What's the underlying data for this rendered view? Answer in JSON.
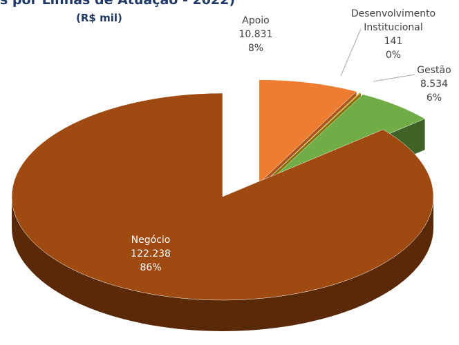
{
  "chart_data": {
    "type": "pie3d",
    "title": "s por Linhas de Atuação - 2022)",
    "subtitle": "(R$ mil)",
    "categories": [
      "Apoio",
      "Desenvolvimento Institucional",
      "Gestão",
      "Negócio"
    ],
    "values": [
      10831,
      141,
      8534,
      122238
    ],
    "value_labels": [
      "10.831",
      "141",
      "8.534",
      "122.238"
    ],
    "percents": [
      8,
      0,
      6,
      86
    ],
    "percent_labels": [
      "8%",
      "0%",
      "6%",
      "86%"
    ],
    "colors": [
      "#ed7d31",
      "#c9a010",
      "#70ad47",
      "#9e4a10"
    ],
    "side_colors": [
      "#a9551c",
      "#8a6e08",
      "#3f6326",
      "#5a2a08"
    ]
  }
}
